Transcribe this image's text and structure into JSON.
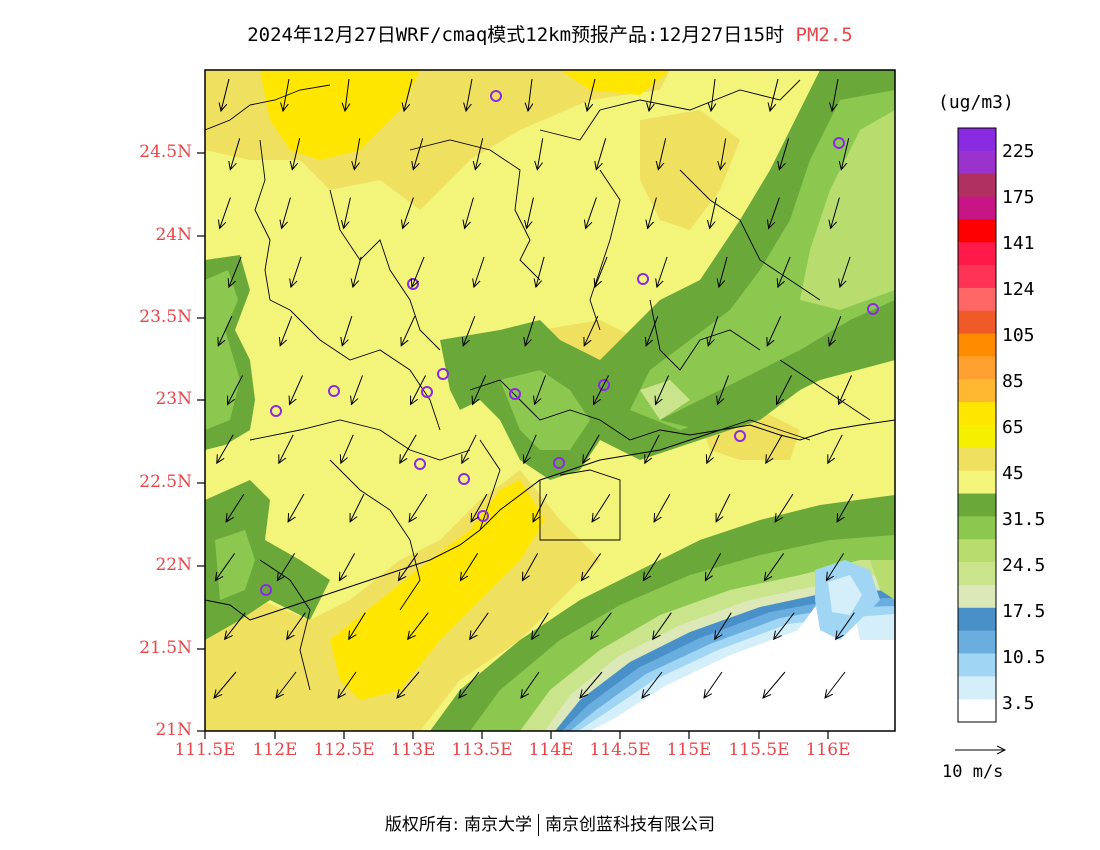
{
  "title": {
    "main": "2024年12月27日WRF/cmaq模式12km预报产品:12月27日15时",
    "pollutant": "PM2.5"
  },
  "axes": {
    "lat_labels": [
      "21N",
      "21.5N",
      "22N",
      "22.5N",
      "23N",
      "23.5N",
      "24N",
      "24.5N"
    ],
    "lon_labels": [
      "111.5E",
      "112E",
      "112.5E",
      "113E",
      "113.5E",
      "114E",
      "114.5E",
      "115E",
      "115.5E",
      "116E"
    ]
  },
  "legend": {
    "unit": "(ug/m3)",
    "labels": [
      "225",
      "175",
      "141",
      "124",
      "105",
      "85",
      "65",
      "45",
      "31.5",
      "24.5",
      "17.5",
      "10.5",
      "3.5"
    ],
    "colors_top_to_bottom": [
      "#8a2be2",
      "#9a32cd",
      "#b03060",
      "#c71585",
      "#ff0000",
      "#ff1a4a",
      "#ff3355",
      "#ff6666",
      "#f05a28",
      "#ff8c00",
      "#ffa030",
      "#ffb830",
      "#ffe600",
      "#f5f000",
      "#f0e060",
      "#f3f57a",
      "#6aa83a",
      "#8cc850",
      "#b8dc6e",
      "#c9e48a",
      "#dce8b8",
      "#4a90c8",
      "#6aaee0",
      "#a0d6f4",
      "#d4eefa",
      "#ffffff"
    ]
  },
  "wind_reference": "10 m/s",
  "footer": {
    "copyright": "版权所有: 南京大学",
    "company": "南京创蓝科技有限公司"
  },
  "colors": {
    "accent": "#e8454a",
    "frame": "#000000"
  }
}
